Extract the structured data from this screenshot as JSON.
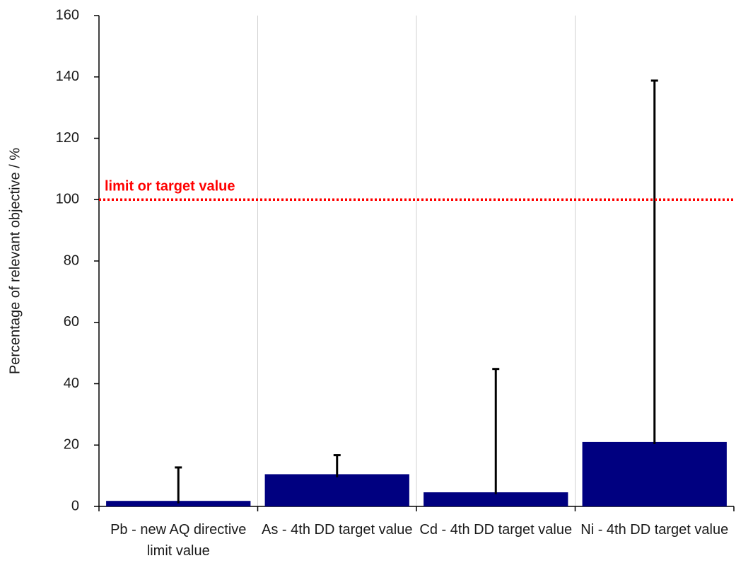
{
  "chart_data": {
    "type": "bar",
    "y_label": "Percentage of relevant objective / %",
    "categories": [
      "Pb - new AQ directive limit value",
      "As - 4th DD target value",
      "Cd - 4th DD target value",
      "Ni - 4th DD target value"
    ],
    "values": [
      1.8,
      10.5,
      4.6,
      21
    ],
    "whisker_low": [
      1,
      9.5,
      4,
      20.3
    ],
    "whisker_high": [
      12.7,
      16.7,
      44.8,
      138.8
    ],
    "color": "#000080",
    "ylim": [
      0,
      160
    ],
    "yticks": [
      0,
      20,
      40,
      60,
      80,
      100,
      120,
      140,
      160
    ],
    "grid": true,
    "reference_line": {
      "value": 100,
      "label": "limit or target value",
      "color": "#ff0000"
    }
  }
}
